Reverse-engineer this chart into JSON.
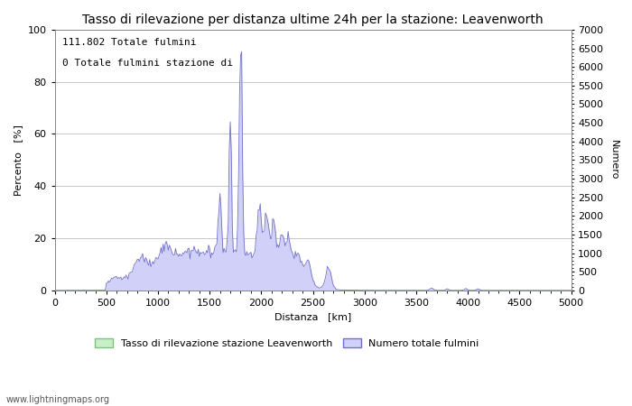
{
  "title": "Tasso di rilevazione per distanza ultime 24h per la stazione: Leavenworth",
  "xlabel": "Distanza   [km]",
  "ylabel_left": "Percento   [%]",
  "ylabel_right": "Numero",
  "annotation_line1": "111.802 Totale fulmini",
  "annotation_line2": "0 Totale fulmini stazione di",
  "xlim": [
    0,
    5000
  ],
  "ylim_left": [
    0,
    100
  ],
  "ylim_right": [
    0,
    7000
  ],
  "xticks": [
    0,
    500,
    1000,
    1500,
    2000,
    2500,
    3000,
    3500,
    4000,
    4500,
    5000
  ],
  "yticks_left": [
    0,
    20,
    40,
    60,
    80,
    100
  ],
  "yticks_right": [
    0,
    500,
    1000,
    1500,
    2000,
    2500,
    3000,
    3500,
    4000,
    4500,
    5000,
    5500,
    6000,
    6500,
    7000
  ],
  "bg_color": "#ffffff",
  "grid_color": "#b0b0b0",
  "fill_color_blue": "#d0d0f8",
  "line_color_blue": "#7070c8",
  "fill_color_green": "#c8f0c8",
  "line_color_green": "#80c080",
  "footer_text": "www.lightningmaps.org",
  "legend_label_green": "Tasso di rilevazione stazione Leavenworth",
  "legend_label_blue": "Numero totale fulmini",
  "title_fontsize": 10,
  "axis_fontsize": 8,
  "tick_fontsize": 8,
  "annotation_fontsize": 8
}
